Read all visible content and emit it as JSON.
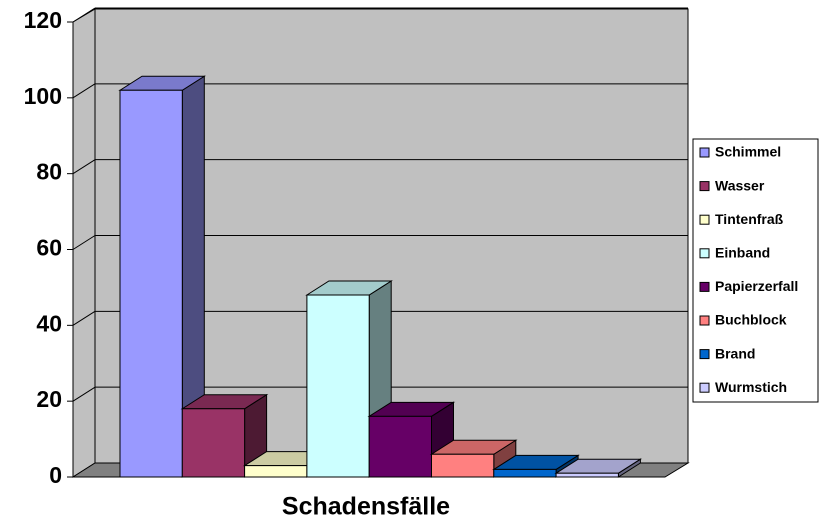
{
  "chart_data": {
    "type": "bar3d",
    "categories": [
      "Schadensfälle"
    ],
    "series": [
      {
        "name": "Schimmel",
        "color": "#9999ff",
        "values": [
          102
        ]
      },
      {
        "name": "Wasser",
        "color": "#993366",
        "values": [
          18
        ]
      },
      {
        "name": "Tintenfraß",
        "color": "#ffffcc",
        "values": [
          3
        ]
      },
      {
        "name": "Einband",
        "color": "#ccffff",
        "values": [
          48
        ]
      },
      {
        "name": "Papierzerfall",
        "color": "#660066",
        "values": [
          16
        ]
      },
      {
        "name": "Buchblock",
        "color": "#ff8080",
        "values": [
          6
        ]
      },
      {
        "name": "Brand",
        "color": "#0066cc",
        "values": [
          2
        ]
      },
      {
        "name": "Wurmstich",
        "color": "#ccccff",
        "values": [
          1
        ]
      }
    ],
    "ylim": [
      0,
      120
    ],
    "yticks": [
      0,
      20,
      40,
      60,
      80,
      100,
      120
    ],
    "grid": true,
    "legend": "right"
  }
}
